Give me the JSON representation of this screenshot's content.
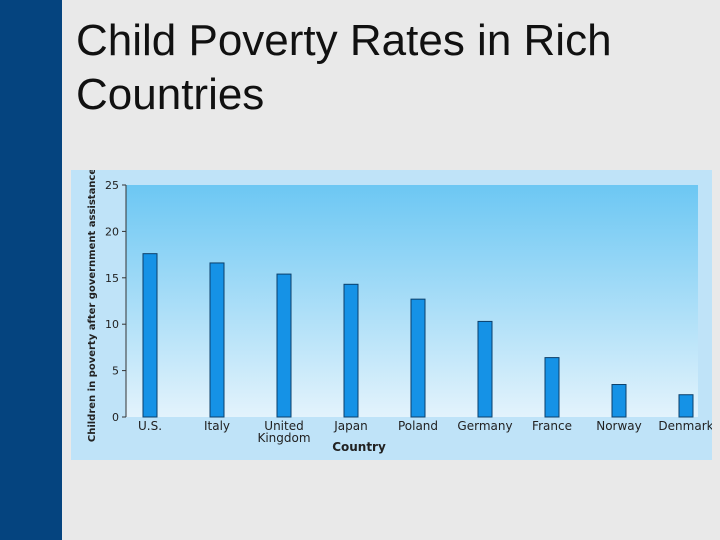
{
  "slide": {
    "title_line1": "Child Poverty Rates in Rich",
    "title_line2": "Countries",
    "colors": {
      "sidebar": "#05447f",
      "background": "#e9e9e9",
      "chart_panel": "#bfe3f8",
      "plot_top": "#6cc7f3",
      "plot_bottom": "#e3f3fc",
      "bar": "#1592e6"
    }
  },
  "chart_data": {
    "type": "bar",
    "title": "",
    "xlabel": "Country",
    "ylabel": "Children in poverty after government assistance",
    "categories": [
      "U.S.",
      "Italy",
      "United Kingdom",
      "Japan",
      "Poland",
      "Germany",
      "France",
      "Norway",
      "Denmark"
    ],
    "category_lines": [
      [
        "U.S."
      ],
      [
        "Italy"
      ],
      [
        "United",
        "Kingdom"
      ],
      [
        "Japan"
      ],
      [
        "Poland"
      ],
      [
        "Germany"
      ],
      [
        "France"
      ],
      [
        "Norway"
      ],
      [
        "Denmark"
      ]
    ],
    "values": [
      17.6,
      16.6,
      15.4,
      14.3,
      12.7,
      10.3,
      6.4,
      3.5,
      2.4
    ],
    "ylim": [
      0,
      25
    ],
    "yticks": [
      0,
      5,
      10,
      15,
      20,
      25
    ],
    "grid": false
  }
}
